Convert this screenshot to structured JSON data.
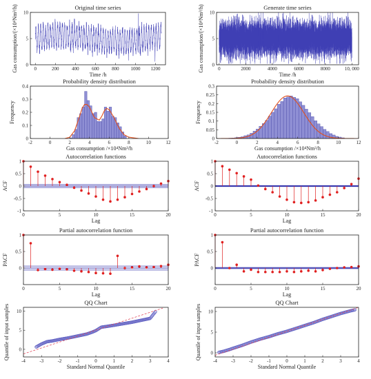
{
  "chart_data": [
    {
      "id": "p0",
      "type": "line",
      "title": "Original time series",
      "xlabel": "Time /h",
      "ylabel": "Gas consumption/(×10⁴Nm³/h)",
      "xlim": [
        -50,
        1300
      ],
      "ylim": [
        0,
        10
      ],
      "xticks": [
        "0",
        "200",
        "400",
        "600",
        "800",
        "1000",
        "1200"
      ],
      "xtick_values": [
        0,
        200,
        400,
        600,
        800,
        1000,
        1200
      ],
      "yticks": [
        "0",
        "5",
        "10"
      ],
      "ytick_values": [
        0,
        5,
        10
      ],
      "series": [
        {
          "color": "#3f3fb5",
          "n": 1260,
          "min": 0.6,
          "max": 9.8,
          "mean": 5.0,
          "period_h": 24
        }
      ]
    },
    {
      "id": "p1",
      "type": "line",
      "title": "Generate time series",
      "xlabel": "Time /h",
      "ylabel": "Gas consumption/(×10⁴Nm³/h)",
      "xlim": [
        -200,
        10500
      ],
      "ylim": [
        0,
        10
      ],
      "xticks": [
        "0",
        "2000",
        "4000",
        "6000",
        "8000",
        "10, 000"
      ],
      "xtick_values": [
        0,
        2000,
        4000,
        6000,
        8000,
        10000
      ],
      "yticks": [
        "0",
        "5",
        "10"
      ],
      "ytick_values": [
        0,
        5,
        10
      ],
      "series": [
        {
          "color": "#3f3fb5",
          "n": 10000,
          "min": 0.2,
          "max": 10.2,
          "mean": 5.0
        }
      ]
    },
    {
      "id": "p2",
      "type": "bar",
      "title": "Probability density distribution",
      "xlabel": "Gas consumption /×10⁴Nm³/h",
      "ylabel": "Frequency",
      "xlim": [
        -2,
        12
      ],
      "ylim": [
        0,
        0.4
      ],
      "xticks": [
        "-2",
        "0",
        "2",
        "4",
        "6",
        "8",
        "10",
        "12"
      ],
      "xtick_values": [
        -2,
        0,
        2,
        4,
        6,
        8,
        10,
        12
      ],
      "yticks": [
        "0",
        "0.1",
        "0.2",
        "0.3",
        "0.4"
      ],
      "ytick_values": [
        0,
        0.1,
        0.2,
        0.3,
        0.4
      ],
      "bar_width": 0.25,
      "bars_x": [
        2.0,
        2.25,
        2.5,
        2.75,
        3.0,
        3.25,
        3.5,
        3.75,
        4.0,
        4.25,
        4.5,
        4.75,
        5.0,
        5.25,
        5.5,
        5.75,
        6.0,
        6.25,
        6.5,
        6.75,
        7.0,
        7.25,
        7.5
      ],
      "bars_y": [
        0.005,
        0.03,
        0.07,
        0.16,
        0.19,
        0.24,
        0.36,
        0.29,
        0.25,
        0.19,
        0.2,
        0.13,
        0.13,
        0.15,
        0.24,
        0.21,
        0.24,
        0.17,
        0.16,
        0.12,
        0.09,
        0.05,
        0.02
      ],
      "curve_x": [
        1.5,
        2.0,
        2.5,
        3.0,
        3.25,
        3.5,
        3.75,
        4.0,
        4.25,
        4.5,
        5.0,
        5.25,
        5.5,
        5.75,
        6.0,
        6.5,
        7.0,
        7.5,
        8.0,
        9.0
      ],
      "curve_y": [
        0.0,
        0.01,
        0.06,
        0.17,
        0.23,
        0.26,
        0.26,
        0.24,
        0.2,
        0.16,
        0.14,
        0.17,
        0.21,
        0.23,
        0.22,
        0.16,
        0.08,
        0.03,
        0.01,
        0.0
      ],
      "bar_color": "#8f8fd4",
      "curve_color": "#e0501e"
    },
    {
      "id": "p3",
      "type": "bar",
      "title": "Probability density distribution",
      "xlabel": "Gas consumption /×10⁴Nm³/h",
      "ylabel": "Frequency",
      "xlim": [
        -2,
        12
      ],
      "ylim": [
        0,
        0.3
      ],
      "xticks": [
        "-2",
        "0",
        "2",
        "4",
        "6",
        "8",
        "10",
        "12"
      ],
      "xtick_values": [
        -2,
        0,
        2,
        4,
        6,
        8,
        10,
        12
      ],
      "yticks": [
        "0",
        "0.05",
        "0.1",
        "0.15",
        "0.2",
        "0.25",
        "0.3"
      ],
      "ytick_values": [
        0,
        0.05,
        0.1,
        0.15,
        0.2,
        0.25,
        0.3
      ],
      "bar_width": 0.3,
      "normal_mean": 5.0,
      "normal_sd": 1.6,
      "bars_x": [
        -1.4,
        -1.1,
        -0.8,
        -0.5,
        -0.2,
        0.1,
        0.4,
        0.7,
        1.0,
        1.3,
        1.6,
        1.9,
        2.2,
        2.5,
        2.8,
        3.1,
        3.4,
        3.7,
        4.0,
        4.3,
        4.6,
        4.9,
        5.2,
        5.5,
        5.8,
        6.1,
        6.4,
        6.7,
        7.0,
        7.3,
        7.6,
        7.9,
        8.2,
        8.5,
        8.8,
        9.1,
        9.4,
        9.7,
        10.0,
        10.3
      ],
      "bars_y": [
        0.0,
        0.001,
        0.002,
        0.003,
        0.005,
        0.007,
        0.01,
        0.016,
        0.021,
        0.03,
        0.042,
        0.054,
        0.07,
        0.086,
        0.104,
        0.128,
        0.15,
        0.17,
        0.196,
        0.212,
        0.232,
        0.238,
        0.244,
        0.236,
        0.228,
        0.21,
        0.19,
        0.168,
        0.148,
        0.125,
        0.102,
        0.084,
        0.068,
        0.052,
        0.04,
        0.028,
        0.02,
        0.012,
        0.008,
        0.004
      ],
      "bar_color": "#8f8fd4",
      "curve_color": "#e0501e"
    },
    {
      "id": "p4",
      "type": "stem",
      "title": "Autocorrelation functions",
      "xlabel": "Lag",
      "ylabel": "ACF",
      "xlim": [
        0,
        20
      ],
      "ylim": [
        -1,
        1
      ],
      "xticks": [
        "0",
        "5",
        "10",
        "15",
        "20"
      ],
      "xtick_values": [
        0,
        5,
        10,
        15,
        20
      ],
      "yticks": [
        "-1",
        "-0.5",
        "0",
        "0.5",
        "1"
      ],
      "ytick_values": [
        -1,
        -0.5,
        0,
        0.5,
        1
      ],
      "lags": [
        0,
        1,
        2,
        3,
        4,
        5,
        6,
        7,
        8,
        9,
        10,
        11,
        12,
        13,
        14,
        15,
        16,
        17,
        18,
        19,
        20
      ],
      "values": [
        1.0,
        0.78,
        0.58,
        0.42,
        0.28,
        0.16,
        0.05,
        -0.07,
        -0.18,
        -0.3,
        -0.42,
        -0.55,
        -0.62,
        -0.55,
        -0.45,
        -0.32,
        -0.22,
        -0.12,
        0.0,
        0.1,
        0.2
      ],
      "bounds": [
        0.06,
        -0.06
      ],
      "stem_color": "#e02020",
      "bound_color": "#3b3bb0"
    },
    {
      "id": "p5",
      "type": "stem",
      "title": "Autocorrelation functions",
      "xlabel": "Lag",
      "ylabel": "ACF",
      "xlim": [
        0,
        20
      ],
      "ylim": [
        -1,
        1
      ],
      "xticks": [
        "0",
        "5",
        "10",
        "15",
        "20"
      ],
      "xtick_values": [
        0,
        5,
        10,
        15,
        20
      ],
      "yticks": [
        "-1",
        "-0.5",
        "0",
        "0.5",
        "1"
      ],
      "ytick_values": [
        -1,
        -0.5,
        0,
        0.5,
        1
      ],
      "lags": [
        0,
        1,
        2,
        3,
        4,
        5,
        6,
        7,
        8,
        9,
        10,
        11,
        12,
        13,
        14,
        15,
        16,
        17,
        18,
        19,
        20
      ],
      "values": [
        1.0,
        0.8,
        0.66,
        0.52,
        0.39,
        0.26,
        0.02,
        -0.12,
        -0.25,
        -0.42,
        -0.55,
        -0.65,
        -0.68,
        -0.65,
        -0.58,
        -0.45,
        -0.35,
        -0.25,
        -0.08,
        0.08,
        0.3
      ],
      "bounds": [
        0.02,
        -0.02
      ],
      "stem_color": "#e02020",
      "bound_color": "#3b3bb0"
    },
    {
      "id": "p6",
      "type": "stem",
      "title": "Partial autocorrelation function",
      "xlabel": "Lag",
      "ylabel": "PACF",
      "xlim": [
        0,
        20
      ],
      "ylim": [
        -0.5,
        1
      ],
      "xticks": [
        "0",
        "5",
        "10",
        "15",
        "20"
      ],
      "xtick_values": [
        0,
        5,
        10,
        15,
        20
      ],
      "yticks": [
        "0",
        "0.5",
        "1"
      ],
      "ytick_values": [
        0,
        0.5,
        1
      ],
      "lags": [
        0,
        1,
        2,
        3,
        4,
        5,
        6,
        7,
        8,
        9,
        10,
        11,
        12,
        13,
        14,
        15,
        16,
        17,
        18,
        19,
        20
      ],
      "values": [
        1.0,
        0.75,
        -0.06,
        -0.03,
        -0.05,
        -0.02,
        -0.04,
        -0.08,
        -0.1,
        -0.12,
        -0.15,
        -0.16,
        -0.17,
        0.37,
        0.0,
        0.02,
        0.05,
        0.02,
        0.03,
        0.06,
        0.1
      ],
      "bounds": [
        0.06,
        -0.06
      ],
      "stem_color": "#e02020",
      "bound_color": "#3b3bb0"
    },
    {
      "id": "p7",
      "type": "stem",
      "title": "Partial autocorrelation function",
      "xlabel": "Lag",
      "ylabel": "PACF",
      "xlim": [
        0,
        20
      ],
      "ylim": [
        -0.5,
        1
      ],
      "xticks": [
        "0",
        "5",
        "10",
        "15",
        "20"
      ],
      "xtick_values": [
        0,
        5,
        10,
        15,
        20
      ],
      "yticks": [
        "0",
        "0.5",
        "1"
      ],
      "ytick_values": [
        0,
        0.5,
        1
      ],
      "lags": [
        0,
        1,
        2,
        3,
        4,
        5,
        6,
        7,
        8,
        9,
        10,
        11,
        12,
        13,
        14,
        15,
        16,
        17,
        18,
        19,
        20
      ],
      "values": [
        1.0,
        0.78,
        0.0,
        0.1,
        -0.1,
        -0.05,
        -0.12,
        -0.12,
        -0.12,
        -0.12,
        -0.1,
        -0.12,
        -0.1,
        -0.08,
        -0.1,
        -0.06,
        -0.02,
        0.0,
        0.02,
        0.03,
        0.05
      ],
      "bounds": [
        0.02,
        -0.02
      ],
      "stem_color": "#e02020",
      "bound_color": "#3b3bb0"
    },
    {
      "id": "p8",
      "type": "scatter",
      "title": "QQ Chart",
      "xlabel": "Standard Normal Quantile",
      "ylabel": "Quantile of input samples",
      "xlim": [
        -4,
        4
      ],
      "ylim": [
        -2,
        11
      ],
      "xticks": [
        "-4",
        "-3",
        "-2",
        "-1",
        "0",
        "1",
        "2",
        "3",
        "4"
      ],
      "xtick_values": [
        -4,
        -3,
        -2,
        -1,
        0,
        1,
        2,
        3,
        4
      ],
      "yticks": [
        "0",
        "5",
        "10"
      ],
      "ytick_values": [
        0,
        5,
        10
      ],
      "quantile_x": [
        -3.3,
        -3.0,
        -2.7,
        -2.4,
        -2.0,
        -1.5,
        -1.0,
        -0.5,
        -0.2,
        0.0,
        0.1,
        0.3,
        0.6,
        1.0,
        1.5,
        2.0,
        2.4,
        2.7,
        3.0,
        3.3
      ],
      "quantile_y": [
        0.6,
        1.4,
        2.0,
        2.2,
        2.6,
        3.0,
        3.5,
        4.0,
        4.5,
        4.9,
        5.2,
        5.8,
        6.0,
        6.3,
        6.7,
        7.1,
        7.5,
        7.8,
        8.1,
        9.9
      ],
      "ref_line": [
        [
          -4,
          -1.2
        ],
        [
          3.7,
          10.8
        ]
      ],
      "marker_color": "#6262c4",
      "ref_color": "#e04a5c"
    },
    {
      "id": "p9",
      "type": "scatter",
      "title": "QQ Chart",
      "xlabel": "Standard Normal Quantile",
      "ylabel": "Quantile of input samples",
      "xlim": [
        -4,
        4
      ],
      "ylim": [
        -1,
        11
      ],
      "xticks": [
        "-4",
        "-3",
        "-2",
        "-1",
        "0",
        "1",
        "2",
        "3",
        "4"
      ],
      "xtick_values": [
        -4,
        -3,
        -2,
        -1,
        0,
        1,
        2,
        3,
        4
      ],
      "yticks": [
        "0",
        "5",
        "10"
      ],
      "ytick_values": [
        0,
        5,
        10
      ],
      "quantile_x": [
        -3.8,
        -3.5,
        -3.2,
        -3.0,
        -2.5,
        -2.0,
        -1.5,
        -1.0,
        -0.5,
        0.0,
        0.5,
        1.0,
        1.5,
        2.0,
        2.5,
        3.0,
        3.5,
        3.8
      ],
      "quantile_y": [
        0.1,
        0.4,
        0.8,
        1.1,
        1.8,
        2.6,
        3.3,
        3.9,
        4.6,
        5.2,
        5.9,
        6.6,
        7.3,
        8.1,
        8.8,
        9.5,
        10.1,
        10.4
      ],
      "ref_line": [
        [
          -4,
          -0.6
        ],
        [
          4,
          11
        ]
      ],
      "marker_color": "#6262c4",
      "ref_color": "#e04a5c"
    }
  ]
}
